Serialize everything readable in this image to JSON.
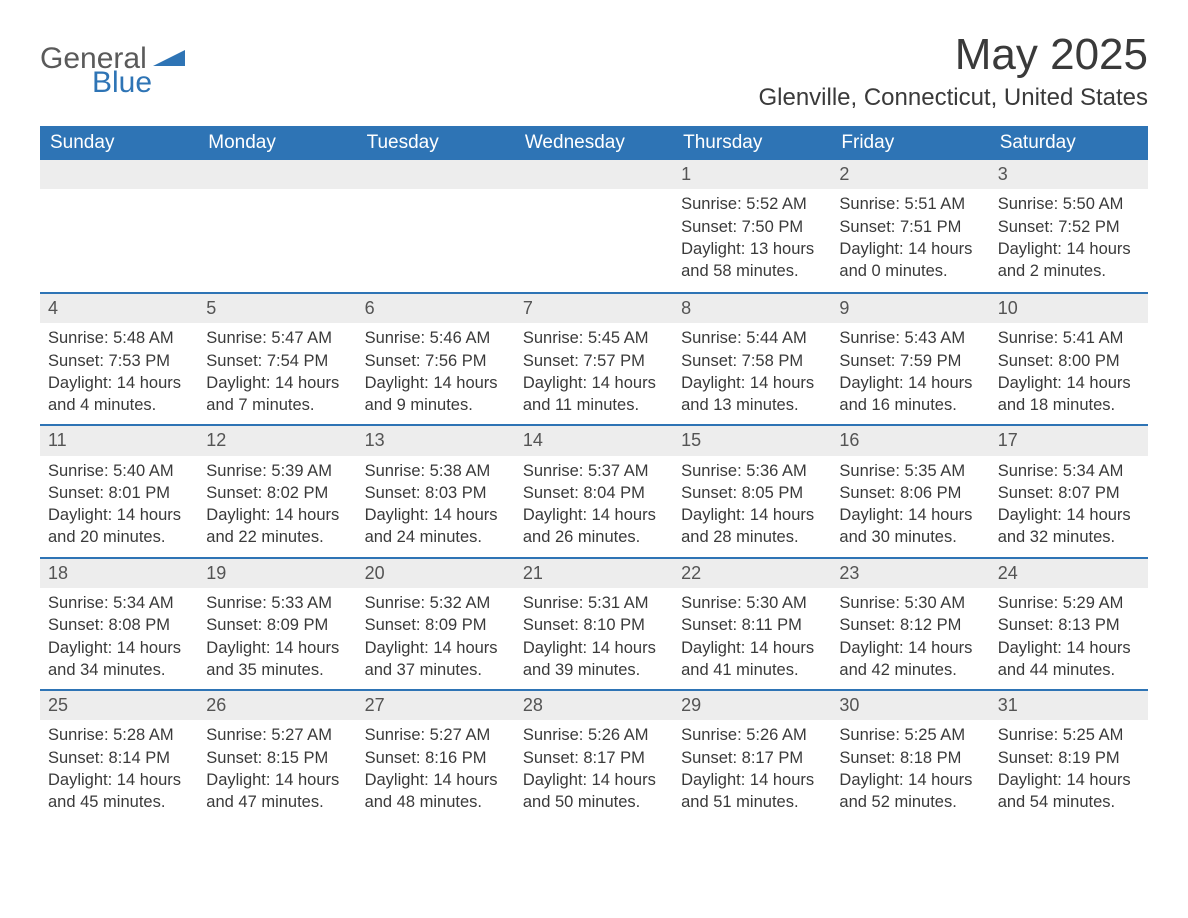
{
  "logo": {
    "text_general": "General",
    "text_blue": "Blue",
    "accent_color": "#2e74b5"
  },
  "title": "May 2025",
  "location": "Glenville, Connecticut, United States",
  "colors": {
    "header_bg": "#2e74b5",
    "header_text": "#ffffff",
    "daynum_bg": "#ededed",
    "daynum_text": "#545454",
    "body_text": "#3a3a3a",
    "row_border": "#2e74b5",
    "background": "#ffffff"
  },
  "weekdays": [
    "Sunday",
    "Monday",
    "Tuesday",
    "Wednesday",
    "Thursday",
    "Friday",
    "Saturday"
  ],
  "weeks": [
    [
      {
        "day": "",
        "sunrise": "",
        "sunset": "",
        "daylight": ""
      },
      {
        "day": "",
        "sunrise": "",
        "sunset": "",
        "daylight": ""
      },
      {
        "day": "",
        "sunrise": "",
        "sunset": "",
        "daylight": ""
      },
      {
        "day": "",
        "sunrise": "",
        "sunset": "",
        "daylight": ""
      },
      {
        "day": "1",
        "sunrise": "Sunrise: 5:52 AM",
        "sunset": "Sunset: 7:50 PM",
        "daylight": "Daylight: 13 hours and 58 minutes."
      },
      {
        "day": "2",
        "sunrise": "Sunrise: 5:51 AM",
        "sunset": "Sunset: 7:51 PM",
        "daylight": "Daylight: 14 hours and 0 minutes."
      },
      {
        "day": "3",
        "sunrise": "Sunrise: 5:50 AM",
        "sunset": "Sunset: 7:52 PM",
        "daylight": "Daylight: 14 hours and 2 minutes."
      }
    ],
    [
      {
        "day": "4",
        "sunrise": "Sunrise: 5:48 AM",
        "sunset": "Sunset: 7:53 PM",
        "daylight": "Daylight: 14 hours and 4 minutes."
      },
      {
        "day": "5",
        "sunrise": "Sunrise: 5:47 AM",
        "sunset": "Sunset: 7:54 PM",
        "daylight": "Daylight: 14 hours and 7 minutes."
      },
      {
        "day": "6",
        "sunrise": "Sunrise: 5:46 AM",
        "sunset": "Sunset: 7:56 PM",
        "daylight": "Daylight: 14 hours and 9 minutes."
      },
      {
        "day": "7",
        "sunrise": "Sunrise: 5:45 AM",
        "sunset": "Sunset: 7:57 PM",
        "daylight": "Daylight: 14 hours and 11 minutes."
      },
      {
        "day": "8",
        "sunrise": "Sunrise: 5:44 AM",
        "sunset": "Sunset: 7:58 PM",
        "daylight": "Daylight: 14 hours and 13 minutes."
      },
      {
        "day": "9",
        "sunrise": "Sunrise: 5:43 AM",
        "sunset": "Sunset: 7:59 PM",
        "daylight": "Daylight: 14 hours and 16 minutes."
      },
      {
        "day": "10",
        "sunrise": "Sunrise: 5:41 AM",
        "sunset": "Sunset: 8:00 PM",
        "daylight": "Daylight: 14 hours and 18 minutes."
      }
    ],
    [
      {
        "day": "11",
        "sunrise": "Sunrise: 5:40 AM",
        "sunset": "Sunset: 8:01 PM",
        "daylight": "Daylight: 14 hours and 20 minutes."
      },
      {
        "day": "12",
        "sunrise": "Sunrise: 5:39 AM",
        "sunset": "Sunset: 8:02 PM",
        "daylight": "Daylight: 14 hours and 22 minutes."
      },
      {
        "day": "13",
        "sunrise": "Sunrise: 5:38 AM",
        "sunset": "Sunset: 8:03 PM",
        "daylight": "Daylight: 14 hours and 24 minutes."
      },
      {
        "day": "14",
        "sunrise": "Sunrise: 5:37 AM",
        "sunset": "Sunset: 8:04 PM",
        "daylight": "Daylight: 14 hours and 26 minutes."
      },
      {
        "day": "15",
        "sunrise": "Sunrise: 5:36 AM",
        "sunset": "Sunset: 8:05 PM",
        "daylight": "Daylight: 14 hours and 28 minutes."
      },
      {
        "day": "16",
        "sunrise": "Sunrise: 5:35 AM",
        "sunset": "Sunset: 8:06 PM",
        "daylight": "Daylight: 14 hours and 30 minutes."
      },
      {
        "day": "17",
        "sunrise": "Sunrise: 5:34 AM",
        "sunset": "Sunset: 8:07 PM",
        "daylight": "Daylight: 14 hours and 32 minutes."
      }
    ],
    [
      {
        "day": "18",
        "sunrise": "Sunrise: 5:34 AM",
        "sunset": "Sunset: 8:08 PM",
        "daylight": "Daylight: 14 hours and 34 minutes."
      },
      {
        "day": "19",
        "sunrise": "Sunrise: 5:33 AM",
        "sunset": "Sunset: 8:09 PM",
        "daylight": "Daylight: 14 hours and 35 minutes."
      },
      {
        "day": "20",
        "sunrise": "Sunrise: 5:32 AM",
        "sunset": "Sunset: 8:09 PM",
        "daylight": "Daylight: 14 hours and 37 minutes."
      },
      {
        "day": "21",
        "sunrise": "Sunrise: 5:31 AM",
        "sunset": "Sunset: 8:10 PM",
        "daylight": "Daylight: 14 hours and 39 minutes."
      },
      {
        "day": "22",
        "sunrise": "Sunrise: 5:30 AM",
        "sunset": "Sunset: 8:11 PM",
        "daylight": "Daylight: 14 hours and 41 minutes."
      },
      {
        "day": "23",
        "sunrise": "Sunrise: 5:30 AM",
        "sunset": "Sunset: 8:12 PM",
        "daylight": "Daylight: 14 hours and 42 minutes."
      },
      {
        "day": "24",
        "sunrise": "Sunrise: 5:29 AM",
        "sunset": "Sunset: 8:13 PM",
        "daylight": "Daylight: 14 hours and 44 minutes."
      }
    ],
    [
      {
        "day": "25",
        "sunrise": "Sunrise: 5:28 AM",
        "sunset": "Sunset: 8:14 PM",
        "daylight": "Daylight: 14 hours and 45 minutes."
      },
      {
        "day": "26",
        "sunrise": "Sunrise: 5:27 AM",
        "sunset": "Sunset: 8:15 PM",
        "daylight": "Daylight: 14 hours and 47 minutes."
      },
      {
        "day": "27",
        "sunrise": "Sunrise: 5:27 AM",
        "sunset": "Sunset: 8:16 PM",
        "daylight": "Daylight: 14 hours and 48 minutes."
      },
      {
        "day": "28",
        "sunrise": "Sunrise: 5:26 AM",
        "sunset": "Sunset: 8:17 PM",
        "daylight": "Daylight: 14 hours and 50 minutes."
      },
      {
        "day": "29",
        "sunrise": "Sunrise: 5:26 AM",
        "sunset": "Sunset: 8:17 PM",
        "daylight": "Daylight: 14 hours and 51 minutes."
      },
      {
        "day": "30",
        "sunrise": "Sunrise: 5:25 AM",
        "sunset": "Sunset: 8:18 PM",
        "daylight": "Daylight: 14 hours and 52 minutes."
      },
      {
        "day": "31",
        "sunrise": "Sunrise: 5:25 AM",
        "sunset": "Sunset: 8:19 PM",
        "daylight": "Daylight: 14 hours and 54 minutes."
      }
    ]
  ]
}
